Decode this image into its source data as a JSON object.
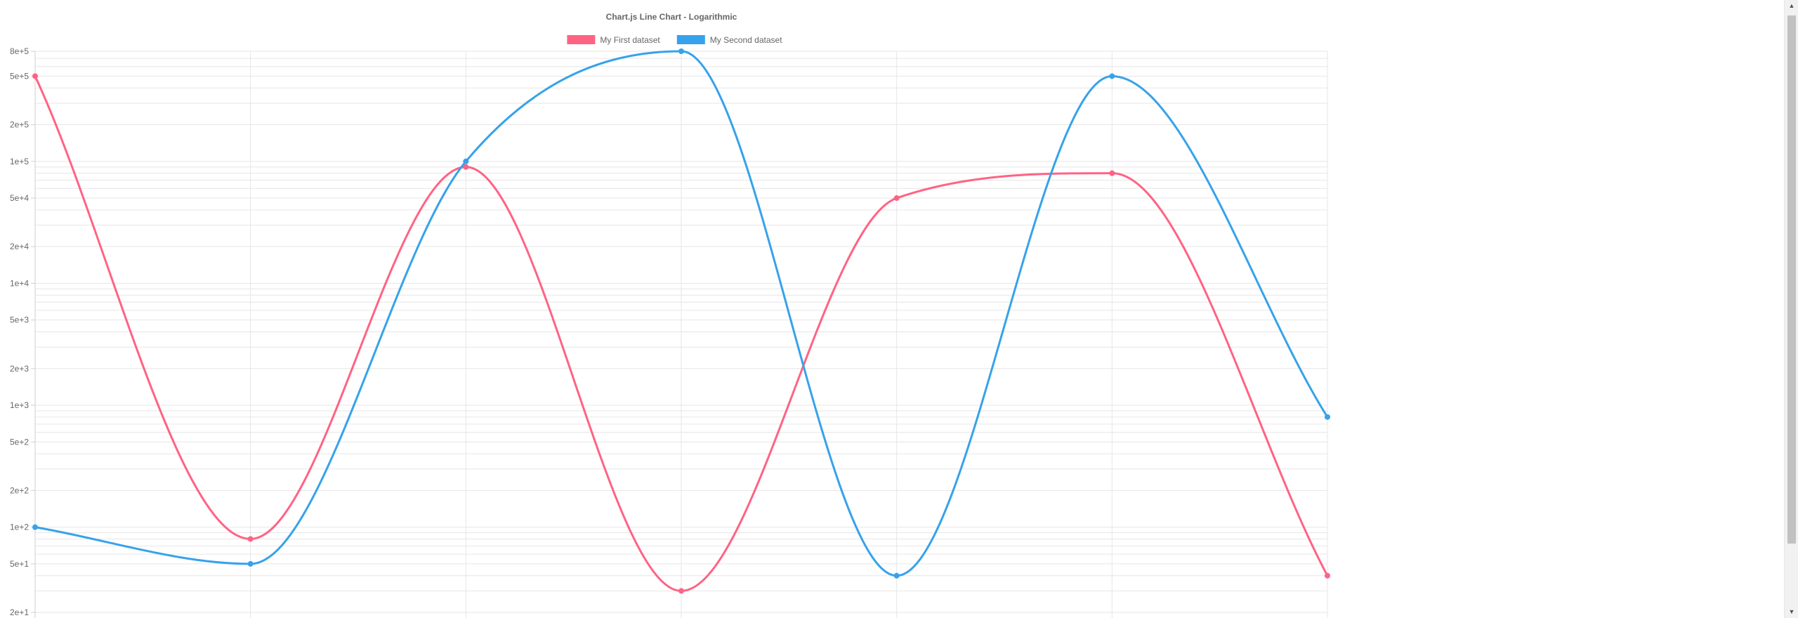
{
  "chart_data": {
    "type": "line",
    "title": "Chart.js Line Chart - Logarithmic",
    "legend_position": "top",
    "y_scale": "logarithmic",
    "ylim": [
      20,
      800000
    ],
    "y_tick_labels": [
      "8e+5",
      "5e+5",
      "2e+5",
      "1e+5",
      "5e+4",
      "2e+4",
      "1e+4",
      "5e+3",
      "2e+3",
      "1e+3",
      "5e+2",
      "2e+2",
      "1e+2",
      "5e+1",
      "2e+1"
    ],
    "grid": true,
    "series": [
      {
        "name": "My First dataset",
        "color": "#ff6384",
        "values": [
          500000,
          80,
          90000,
          30,
          50000,
          80000,
          40
        ]
      },
      {
        "name": "My Second dataset",
        "color": "#36a2eb",
        "values": [
          100,
          50,
          100000,
          800000,
          40,
          500000,
          800
        ]
      }
    ]
  },
  "scrollbar": {
    "up_arrow": "▲",
    "down_arrow": "▼"
  }
}
